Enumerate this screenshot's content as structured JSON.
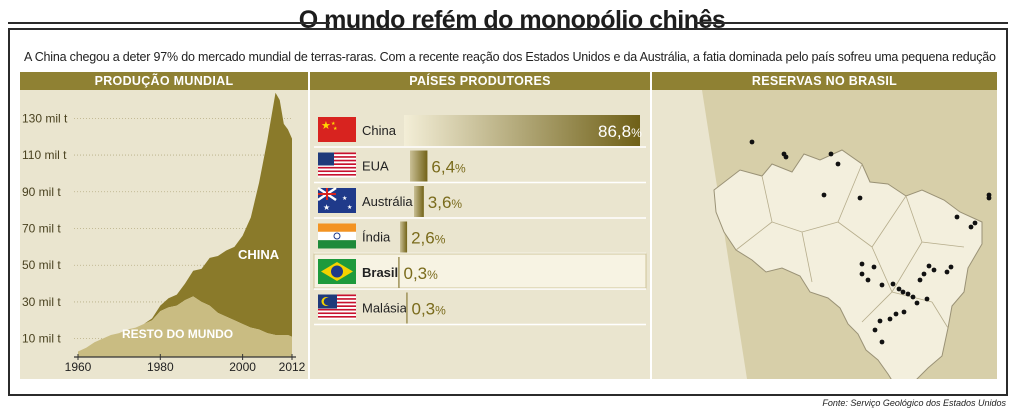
{
  "header": {
    "title": "O mundo refém do monopólio chinês",
    "subtitle": "A China chegou a deter 97% do mercado mundial de terras-raras. Com a recente reação dos Estados Unidos e da Austrália, a fatia dominada pelo país sofreu uma pequena redução",
    "source": "Fonte: Serviço Geológico dos Estados Unidos"
  },
  "colors": {
    "panel_bg": "#eae5cf",
    "header_bar": "#8f8133",
    "china_area": "#8a7a2a",
    "rest_area": "#c9bc82",
    "bar_dark": "#7a6b1c",
    "bar_light": "#e9e1bd",
    "map_fill": "#f3efdd",
    "map_bg": "#d7cfa9"
  },
  "panels": {
    "production_title": "PRODUÇÃO MUNDIAL",
    "countries_title": "PAÍSES PRODUTORES",
    "reserves_title": "RESERVAS NO BRASIL"
  },
  "chart_data": [
    {
      "type": "area",
      "title": "PRODUÇÃO MUNDIAL",
      "x_ticks": [
        "1960",
        "1980",
        "2000",
        "2012"
      ],
      "y_ticks": [
        "10 mil t",
        "30 mil t",
        "50 mil t",
        "70 mil t",
        "90 mil t",
        "110 mil t",
        "130 mil t"
      ],
      "y_tick_values": [
        10,
        30,
        50,
        70,
        90,
        110,
        130
      ],
      "xlim": [
        1960,
        2012
      ],
      "ylim": [
        0,
        140
      ],
      "area_labels": {
        "china": "CHINA",
        "rest": "RESTO DO MUNDO"
      },
      "x": [
        1960,
        1962,
        1964,
        1966,
        1968,
        1970,
        1972,
        1974,
        1976,
        1978,
        1980,
        1982,
        1984,
        1986,
        1988,
        1990,
        1992,
        1994,
        1996,
        1998,
        2000,
        2002,
        2004,
        2006,
        2008,
        2009,
        2010,
        2011,
        2012
      ],
      "series": [
        {
          "name": "RESTO DO MUNDO",
          "values": [
            3,
            5,
            8,
            10,
            12,
            13,
            15,
            16,
            18,
            20,
            25,
            27,
            28,
            31,
            33,
            30,
            28,
            24,
            22,
            20,
            18,
            16,
            15,
            13,
            12,
            12,
            12,
            12,
            11
          ]
        },
        {
          "name": "CHINA",
          "values": [
            0,
            0,
            0,
            0,
            0,
            0,
            0,
            0,
            0,
            1,
            3,
            5,
            6,
            9,
            14,
            18,
            26,
            31,
            36,
            40,
            48,
            60,
            80,
            105,
            132,
            128,
            115,
            112,
            108
          ]
        }
      ]
    },
    {
      "type": "bar",
      "title": "PAÍSES PRODUTORES",
      "categories": [
        "China",
        "EUA",
        "Austrália",
        "Índia",
        "Brasil",
        "Malásia"
      ],
      "values": [
        86.8,
        6.4,
        3.6,
        2.6,
        0.3,
        0.3
      ],
      "value_labels": [
        [
          "86,8",
          "%"
        ],
        [
          "6,4",
          "%"
        ],
        [
          "3,6",
          "%"
        ],
        [
          "2,6",
          "%"
        ],
        [
          "0,3",
          "%"
        ],
        [
          "0,3",
          "%"
        ]
      ],
      "flags": [
        "china-flag-icon",
        "usa-flag-icon",
        "australia-flag-icon",
        "india-flag-icon",
        "brazil-flag-icon",
        "malaysia-flag-icon"
      ],
      "highlighted": "Brasil"
    }
  ],
  "map": {
    "reserve_points": [
      [
        140,
        130
      ],
      [
        172,
        142
      ],
      [
        174,
        145
      ],
      [
        219,
        142
      ],
      [
        226,
        152
      ],
      [
        212,
        183
      ],
      [
        248,
        186
      ],
      [
        377,
        183
      ],
      [
        377,
        186
      ],
      [
        345,
        205
      ],
      [
        363,
        211
      ],
      [
        359,
        215
      ],
      [
        250,
        252
      ],
      [
        262,
        255
      ],
      [
        250,
        262
      ],
      [
        256,
        268
      ],
      [
        270,
        273
      ],
      [
        281,
        272
      ],
      [
        287,
        277
      ],
      [
        291,
        280
      ],
      [
        296,
        282
      ],
      [
        301,
        285
      ],
      [
        308,
        268
      ],
      [
        312,
        262
      ],
      [
        317,
        254
      ],
      [
        322,
        258
      ],
      [
        335,
        260
      ],
      [
        339,
        255
      ],
      [
        315,
        287
      ],
      [
        305,
        291
      ],
      [
        292,
        300
      ],
      [
        284,
        302
      ],
      [
        278,
        307
      ],
      [
        268,
        309
      ],
      [
        263,
        318
      ],
      [
        270,
        330
      ]
    ]
  }
}
